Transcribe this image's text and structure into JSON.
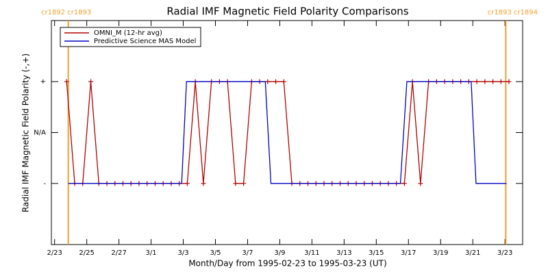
{
  "chart_data": {
    "type": "line",
    "title": "Radial IMF Magnetic Field Polarity Comparisons",
    "xlabel": "Month/Day from 1995-02-23 to 1995-03-23 (UT)",
    "ylabel": "Radial IMF Magnetic Field Polarity (-,+)",
    "xlim": [
      -0.2,
      29.1
    ],
    "xticks": [
      {
        "value": 0,
        "label": "2/23"
      },
      {
        "value": 2,
        "label": "2/25"
      },
      {
        "value": 4,
        "label": "2/27"
      },
      {
        "value": 6,
        "label": "3/1"
      },
      {
        "value": 8,
        "label": "3/3"
      },
      {
        "value": 10,
        "label": "3/5"
      },
      {
        "value": 12,
        "label": "3/7"
      },
      {
        "value": 14,
        "label": "3/9"
      },
      {
        "value": 16,
        "label": "3/11"
      },
      {
        "value": 18,
        "label": "3/13"
      },
      {
        "value": 20,
        "label": "3/15"
      },
      {
        "value": 22,
        "label": "3/17"
      },
      {
        "value": 24,
        "label": "3/19"
      },
      {
        "value": 26,
        "label": "3/21"
      },
      {
        "value": 28,
        "label": "3/23"
      }
    ],
    "ylim": [
      -2.2,
      2.2
    ],
    "yticks": [
      {
        "value": 1,
        "label": "+"
      },
      {
        "value": 0,
        "label": "N/A"
      },
      {
        "value": -1,
        "label": "-"
      }
    ],
    "legend": "upper left",
    "series": [
      {
        "name": "OMNI_M (12-hr avg)",
        "color": "#b00000",
        "marker": "+",
        "x": [
          0.75,
          1.25,
          1.75,
          2.25,
          2.75,
          3.25,
          3.75,
          4.25,
          4.75,
          5.25,
          5.75,
          6.25,
          6.75,
          7.25,
          7.75,
          8.25,
          8.75,
          9.25,
          9.75,
          10.25,
          10.75,
          11.25,
          11.75,
          12.25,
          12.75,
          13.25,
          13.75,
          14.25,
          14.75,
          15.25,
          15.75,
          16.25,
          16.75,
          17.25,
          17.75,
          18.25,
          18.75,
          19.25,
          19.75,
          20.25,
          20.75,
          21.25,
          21.75,
          22.25,
          22.75,
          23.25,
          23.75,
          24.25,
          24.75,
          25.25,
          25.75,
          26.25,
          26.75,
          27.25,
          27.75,
          28.25
        ],
        "values": [
          1,
          -1,
          -1,
          1,
          -1,
          -1,
          -1,
          -1,
          -1,
          -1,
          -1,
          -1,
          -1,
          -1,
          -1,
          -1,
          1,
          -1,
          1,
          1,
          1,
          -1,
          -1,
          1,
          1,
          1,
          1,
          1,
          -1,
          -1,
          -1,
          -1,
          -1,
          -1,
          -1,
          -1,
          -1,
          -1,
          -1,
          -1,
          -1,
          -1,
          -1,
          1,
          -1,
          1,
          1,
          1,
          1,
          1,
          1,
          1,
          1,
          1,
          1,
          1
        ]
      },
      {
        "name": "Predictive Science MAS Model",
        "color": "#0000c0",
        "x": [
          0.85,
          7.9,
          8.2,
          13.1,
          13.45,
          21.5,
          21.9,
          25.9,
          26.2,
          28.1
        ],
        "values": [
          -1,
          -1,
          1,
          1,
          -1,
          -1,
          1,
          1,
          -1,
          -1
        ]
      }
    ],
    "annotations": [
      {
        "text": "cr1892 cr1893",
        "x": 0.85
      },
      {
        "text": "cr1893 cr1894",
        "x": 28.05
      }
    ],
    "annotation_color": "#f0a030"
  }
}
